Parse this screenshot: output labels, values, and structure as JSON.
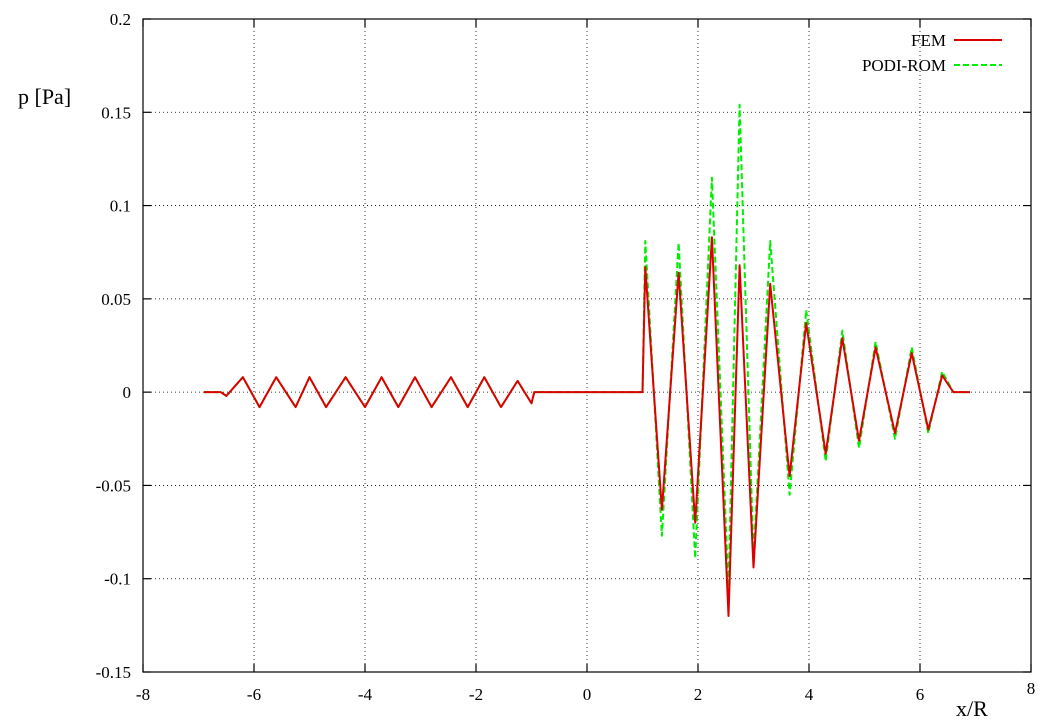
{
  "chart_data": {
    "type": "line",
    "title": "",
    "xlabel": "x/R",
    "ylabel": "p [Pa]",
    "xlim": [
      -8,
      8
    ],
    "ylim": [
      -0.15,
      0.2
    ],
    "xticks": [
      -8,
      -6,
      -4,
      -2,
      0,
      2,
      4,
      6,
      8
    ],
    "yticks": [
      -0.15,
      -0.1,
      -0.05,
      0,
      0.05,
      0.1,
      0.15,
      0.2
    ],
    "xtick_labels": [
      "-8",
      "-6",
      "-4",
      "-2",
      "0",
      "2",
      "4",
      "6",
      "8"
    ],
    "ytick_labels": [
      "-0.15",
      "-0.1",
      "-0.05",
      "0",
      "0.05",
      "0.1",
      "0.15",
      "0.2"
    ],
    "grid": true,
    "legend_position": "top-right",
    "series": [
      {
        "name": "FEM",
        "color": "#dd0000",
        "style": "solid",
        "x": [
          -6.9,
          -6.6,
          -6.5,
          -6.2,
          -5.9,
          -5.6,
          -5.25,
          -5.0,
          -4.7,
          -4.35,
          -4.0,
          -3.7,
          -3.4,
          -3.1,
          -2.8,
          -2.45,
          -2.15,
          -1.85,
          -1.55,
          -1.25,
          -1.0,
          -0.95,
          1.0,
          1.05,
          1.35,
          1.65,
          1.95,
          2.25,
          2.55,
          2.75,
          3.0,
          3.3,
          3.65,
          3.95,
          4.3,
          4.6,
          4.9,
          5.2,
          5.55,
          5.85,
          6.15,
          6.4,
          6.6,
          6.9
        ],
        "y": [
          0,
          0,
          -0.002,
          0.008,
          -0.008,
          0.008,
          -0.008,
          0.008,
          -0.008,
          0.008,
          -0.008,
          0.008,
          -0.008,
          0.008,
          -0.008,
          0.008,
          -0.008,
          0.008,
          -0.008,
          0.006,
          -0.006,
          0,
          0,
          0.067,
          -0.063,
          0.064,
          -0.07,
          0.083,
          -0.12,
          0.068,
          -0.094,
          0.058,
          -0.045,
          0.037,
          -0.033,
          0.029,
          -0.026,
          0.024,
          -0.022,
          0.021,
          -0.02,
          0.009,
          0,
          0
        ]
      },
      {
        "name": "PODI-ROM",
        "color": "#00ee00",
        "style": "dashed",
        "x": [
          -6.9,
          -6.6,
          -6.5,
          -6.2,
          -5.9,
          -5.6,
          -5.25,
          -5.0,
          -4.7,
          -4.35,
          -4.0,
          -3.7,
          -3.4,
          -3.1,
          -2.8,
          -2.45,
          -2.15,
          -1.85,
          -1.55,
          -1.25,
          -1.0,
          -0.95,
          1.0,
          1.05,
          1.35,
          1.65,
          1.95,
          2.25,
          2.55,
          2.75,
          3.0,
          3.3,
          3.65,
          3.95,
          4.3,
          4.6,
          4.9,
          5.2,
          5.55,
          5.85,
          6.15,
          6.4,
          6.6,
          6.9
        ],
        "y": [
          0,
          0,
          -0.002,
          0.008,
          -0.008,
          0.008,
          -0.008,
          0.008,
          -0.008,
          0.008,
          -0.008,
          0.008,
          -0.008,
          0.008,
          -0.008,
          0.008,
          -0.008,
          0.008,
          -0.008,
          0.006,
          -0.006,
          0,
          0,
          0.081,
          -0.077,
          0.08,
          -0.089,
          0.115,
          -0.107,
          0.154,
          -0.089,
          0.081,
          -0.055,
          0.044,
          -0.037,
          0.033,
          -0.03,
          0.027,
          -0.025,
          0.024,
          -0.022,
          0.011,
          0,
          0
        ]
      }
    ]
  }
}
